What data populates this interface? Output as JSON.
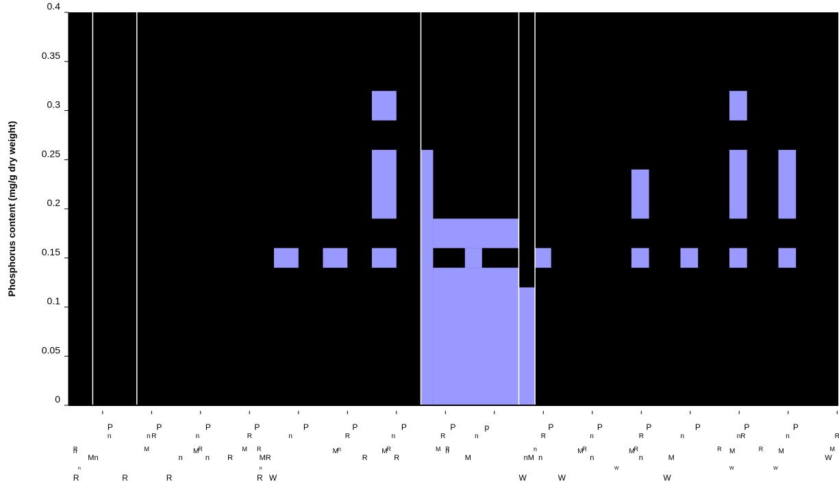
{
  "chart_data": {
    "type": "bar",
    "ylabel": "Phosphorus content (mg/g dry weight)",
    "ylim": [
      0,
      0.4
    ],
    "yticks": [
      "0",
      "0.05",
      "0.1",
      "0.15",
      "0.2",
      "0.25",
      "0.3",
      "0.35",
      "0.4"
    ],
    "background_color": "#000000",
    "bar_color": "#9999ff",
    "separator_color": "#ffffff",
    "bars": [
      {
        "x0": 0.0,
        "x1": 0.5,
        "y0": 0.14,
        "y1": 0.16
      },
      {
        "x0": 1.0,
        "x1": 1.5,
        "y0": 0.14,
        "y1": 0.16
      },
      {
        "x0": 2.0,
        "x1": 2.5,
        "y0": 0.19,
        "y1": 0.26
      },
      {
        "x0": 2.0,
        "x1": 2.5,
        "y0": 0.29,
        "y1": 0.32
      },
      {
        "x0": 2.0,
        "x1": 2.5,
        "y0": 0.14,
        "y1": 0.16
      },
      {
        "x0": 3.0,
        "x1": 3.25,
        "y0": 0.0,
        "y1": 0.26
      },
      {
        "x0": 3.25,
        "x1": 5.0,
        "y0": 0.0,
        "y1": 0.14
      },
      {
        "x0": 3.25,
        "x1": 5.0,
        "y0": 0.16,
        "y1": 0.19
      },
      {
        "x0": 3.9,
        "x1": 4.25,
        "y0": 0.14,
        "y1": 0.16
      },
      {
        "x0": 5.0,
        "x1": 5.33,
        "y0": 0.0,
        "y1": 0.12
      },
      {
        "x0": 5.33,
        "x1": 5.66,
        "y0": 0.14,
        "y1": 0.16
      },
      {
        "x0": 7.3,
        "x1": 7.66,
        "y0": 0.19,
        "y1": 0.24
      },
      {
        "x0": 7.3,
        "x1": 7.66,
        "y0": 0.14,
        "y1": 0.16
      },
      {
        "x0": 8.3,
        "x1": 8.66,
        "y0": 0.14,
        "y1": 0.16
      },
      {
        "x0": 9.3,
        "x1": 9.66,
        "y0": 0.19,
        "y1": 0.26
      },
      {
        "x0": 9.3,
        "x1": 9.66,
        "y0": 0.29,
        "y1": 0.32
      },
      {
        "x0": 9.3,
        "x1": 9.66,
        "y0": 0.14,
        "y1": 0.16
      },
      {
        "x0": 10.3,
        "x1": 10.66,
        "y0": 0.19,
        "y1": 0.26
      },
      {
        "x0": 10.3,
        "x1": 10.66,
        "y0": 0.14,
        "y1": 0.16
      }
    ],
    "vertical_separators": [
      -3.7,
      -2.8,
      3.0,
      5.0,
      5.33
    ],
    "category_label_fragments": [
      {
        "t": "P",
        "x": -3.4,
        "row": 1
      },
      {
        "t": "n",
        "x": -3.4,
        "row": 2
      },
      {
        "t": "R",
        "x": -4.1,
        "row": 3
      },
      {
        "t": "n",
        "x": -4.1,
        "row": 4
      },
      {
        "t": "Mn",
        "x": -3.8,
        "row": 5
      },
      {
        "t": "n",
        "x": -4.0,
        "row": 6
      },
      {
        "t": "R",
        "x": -4.1,
        "row": 7
      },
      {
        "t": "P",
        "x": -2.4,
        "row": 1
      },
      {
        "t": "n",
        "x": -2.6,
        "row": 2
      },
      {
        "t": "R",
        "x": -2.5,
        "row": 2
      },
      {
        "t": "M",
        "x": -2.65,
        "row": 3
      },
      {
        "t": "R",
        "x": -3.1,
        "row": 7
      },
      {
        "t": "R",
        "x": -2.2,
        "row": 7
      },
      {
        "t": "P",
        "x": -1.4,
        "row": 1
      },
      {
        "t": "n",
        "x": -1.6,
        "row": 2
      },
      {
        "t": "R",
        "x": -1.55,
        "row": 3
      },
      {
        "t": "M",
        "x": -1.65,
        "row": 4
      },
      {
        "t": "n",
        "x": -1.4,
        "row": 5
      },
      {
        "t": "n",
        "x": -1.95,
        "row": 5
      },
      {
        "t": "P",
        "x": -0.4,
        "row": 1
      },
      {
        "t": "R",
        "x": -0.55,
        "row": 2
      },
      {
        "t": "M",
        "x": -0.65,
        "row": 3
      },
      {
        "t": "R",
        "x": -0.95,
        "row": 5
      },
      {
        "t": "R",
        "x": -0.35,
        "row": 3
      },
      {
        "t": "MR",
        "x": -0.3,
        "row": 5
      },
      {
        "t": "n",
        "x": -0.3,
        "row": 6
      },
      {
        "t": "R",
        "x": -0.35,
        "row": 7
      },
      {
        "t": "W",
        "x": -0.1,
        "row": 7
      },
      {
        "t": "P",
        "x": 0.6,
        "row": 1
      },
      {
        "t": "n",
        "x": 0.3,
        "row": 2
      },
      {
        "t": "P",
        "x": 1.6,
        "row": 1
      },
      {
        "t": "R",
        "x": 1.45,
        "row": 2
      },
      {
        "t": "n",
        "x": 1.3,
        "row": 3
      },
      {
        "t": "M",
        "x": 1.2,
        "row": 4
      },
      {
        "t": "P",
        "x": 2.6,
        "row": 1
      },
      {
        "t": "n",
        "x": 2.4,
        "row": 2
      },
      {
        "t": "R",
        "x": 2.3,
        "row": 3
      },
      {
        "t": "M",
        "x": 2.2,
        "row": 4
      },
      {
        "t": "R",
        "x": 2.45,
        "row": 5
      },
      {
        "t": "R",
        "x": 1.8,
        "row": 5
      },
      {
        "t": "P",
        "x": 3.6,
        "row": 1
      },
      {
        "t": "R",
        "x": 3.4,
        "row": 2
      },
      {
        "t": "M",
        "x": 3.3,
        "row": 3
      },
      {
        "t": "R",
        "x": 3.5,
        "row": 3
      },
      {
        "t": "n",
        "x": 3.5,
        "row": 4
      },
      {
        "t": "p",
        "x": 4.3,
        "row": 1
      },
      {
        "t": "n",
        "x": 4.1,
        "row": 2
      },
      {
        "t": "M",
        "x": 3.9,
        "row": 5
      },
      {
        "t": "P",
        "x": 5.6,
        "row": 1
      },
      {
        "t": "R",
        "x": 5.45,
        "row": 2
      },
      {
        "t": "n",
        "x": 5.3,
        "row": 3
      },
      {
        "t": "nM",
        "x": 5.1,
        "row": 5
      },
      {
        "t": "n",
        "x": 5.4,
        "row": 5
      },
      {
        "t": "W",
        "x": 5.0,
        "row": 7
      },
      {
        "t": "W",
        "x": 5.8,
        "row": 7
      },
      {
        "t": "P",
        "x": 6.6,
        "row": 1
      },
      {
        "t": "n",
        "x": 6.45,
        "row": 2
      },
      {
        "t": "R",
        "x": 6.3,
        "row": 3
      },
      {
        "t": "M",
        "x": 6.2,
        "row": 4
      },
      {
        "t": "n",
        "x": 6.45,
        "row": 5
      },
      {
        "t": "P",
        "x": 7.6,
        "row": 1
      },
      {
        "t": "R",
        "x": 7.45,
        "row": 2
      },
      {
        "t": "R",
        "x": 7.35,
        "row": 3
      },
      {
        "t": "M",
        "x": 7.25,
        "row": 4
      },
      {
        "t": "n",
        "x": 7.45,
        "row": 5
      },
      {
        "t": "W",
        "x": 6.95,
        "row": 6
      },
      {
        "t": "P",
        "x": 8.6,
        "row": 1
      },
      {
        "t": "n",
        "x": 8.3,
        "row": 2
      },
      {
        "t": "M",
        "x": 8.05,
        "row": 5
      },
      {
        "t": "W",
        "x": 7.95,
        "row": 7
      },
      {
        "t": "P",
        "x": 9.6,
        "row": 1
      },
      {
        "t": "nR",
        "x": 9.45,
        "row": 2
      },
      {
        "t": "R",
        "x": 9.05,
        "row": 3
      },
      {
        "t": "M",
        "x": 9.3,
        "row": 4
      },
      {
        "t": "W",
        "x": 9.3,
        "row": 6
      },
      {
        "t": "P",
        "x": 10.6,
        "row": 1
      },
      {
        "t": "R",
        "x": 9.9,
        "row": 3
      },
      {
        "t": "n",
        "x": 10.45,
        "row": 2
      },
      {
        "t": "M",
        "x": 10.3,
        "row": 4
      },
      {
        "t": "W",
        "x": 10.2,
        "row": 6
      },
      {
        "t": "P",
        "x": 11.6,
        "row": 1
      },
      {
        "t": "R",
        "x": 11.45,
        "row": 2
      },
      {
        "t": "M",
        "x": 11.35,
        "row": 3
      },
      {
        "t": "W",
        "x": 11.25,
        "row": 5
      }
    ]
  }
}
